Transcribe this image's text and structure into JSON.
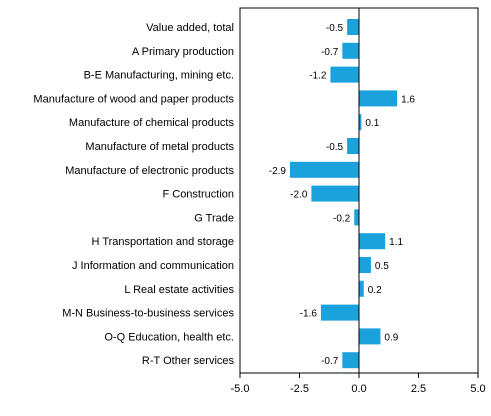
{
  "colors": {
    "bar": "#1ba1dc",
    "axis": "#000000",
    "frame": "#000000",
    "background": "#ffffff"
  },
  "chart_data": {
    "type": "bar",
    "orientation": "horizontal",
    "categories": [
      "Value added, total",
      "A Primary production",
      "B-E Manufacturing, mining etc.",
      "Manufacture of wood and paper products",
      "Manufacture of chemical products",
      "Manufacture of metal products",
      "Manufacture of electronic products",
      "F Construction",
      "G Trade",
      "H Transportation and storage",
      "J Information and communication",
      "L Real estate activities",
      "M-N Business-to-business services",
      "O-Q Education, health etc.",
      "R-T Other services"
    ],
    "values": [
      -0.5,
      -0.7,
      -1.2,
      1.6,
      0.1,
      -0.5,
      -2.9,
      -2.0,
      -0.2,
      1.1,
      0.5,
      0.2,
      -1.6,
      0.9,
      -0.7
    ],
    "value_labels": [
      "-0.5",
      "-0.7",
      "-1.2",
      "1.6",
      "0.1",
      "-0.5",
      "-2.9",
      "-2.0",
      "-0.2",
      "1.1",
      "0.5",
      "0.2",
      "-1.6",
      "0.9",
      "-0.7"
    ],
    "xlim": [
      -5.0,
      5.0
    ],
    "xticks": [
      -5.0,
      -2.5,
      0.0,
      2.5,
      5.0
    ],
    "xtick_labels": [
      "-5.0",
      "-2.5",
      "0.0",
      "2.5",
      "5.0"
    ],
    "title": "",
    "xlabel": "",
    "ylabel": "",
    "grid": false,
    "legend": "none"
  }
}
